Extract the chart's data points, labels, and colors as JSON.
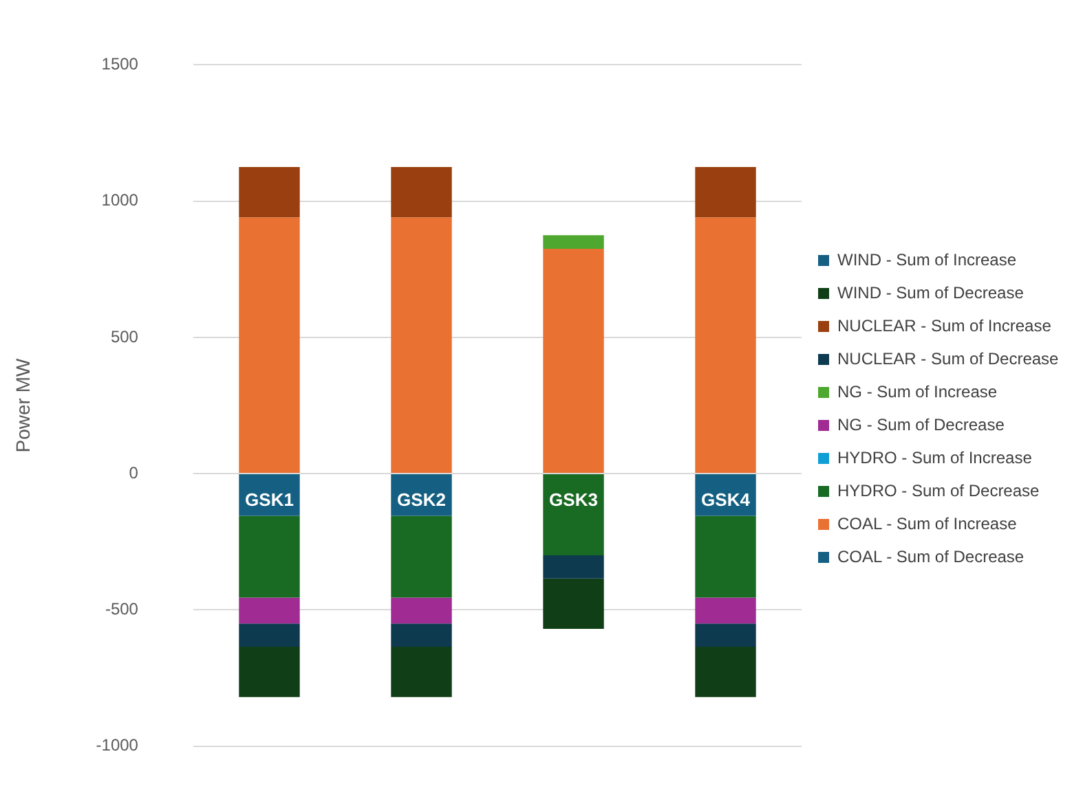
{
  "chart_data": {
    "type": "bar",
    "stacked": true,
    "ylabel": "Power MW",
    "categories": [
      "GSK1",
      "GSK2",
      "GSK3",
      "GSK4"
    ],
    "ylim": [
      -1000,
      1500
    ],
    "yticks": [
      -1000,
      -500,
      0,
      500,
      1000,
      1500
    ],
    "grid": "y",
    "legend": "right",
    "series": [
      {
        "name": "COAL - Sum of Decrease",
        "color": "#156082",
        "values": [
          -155,
          -155,
          null,
          -155
        ]
      },
      {
        "name": "COAL - Sum of Increase",
        "color": "#e97132",
        "values": [
          940,
          940,
          825,
          940
        ]
      },
      {
        "name": "HYDRO - Sum of Decrease",
        "color": "#196b24",
        "values": [
          -300,
          -300,
          -300,
          -300
        ]
      },
      {
        "name": "HYDRO - Sum of Increase",
        "color": "#0f9ed5",
        "values": [
          null,
          null,
          null,
          null
        ]
      },
      {
        "name": "NG - Sum of Decrease",
        "color": "#a02b93",
        "values": [
          -95,
          -95,
          null,
          -95
        ]
      },
      {
        "name": "NG - Sum of Increase",
        "color": "#4ea72e",
        "values": [
          null,
          null,
          50,
          null
        ]
      },
      {
        "name": "NUCLEAR - Sum of Decrease",
        "color": "#0e3a50",
        "values": [
          -85,
          -85,
          -85,
          -85
        ]
      },
      {
        "name": "NUCLEAR - Sum of Increase",
        "color": "#9a3f0f",
        "values": [
          185,
          185,
          null,
          185
        ]
      },
      {
        "name": "WIND - Sum of Decrease",
        "color": "#103f17",
        "values": [
          -185,
          -185,
          -185,
          -185
        ]
      },
      {
        "name": "WIND - Sum of Increase",
        "color": "#156082",
        "values": [
          null,
          null,
          null,
          null
        ]
      }
    ]
  }
}
